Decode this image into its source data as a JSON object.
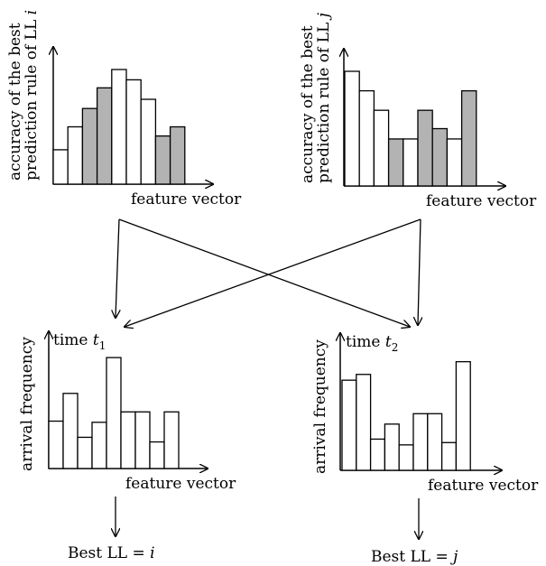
{
  "chart_data": [
    {
      "type": "bar",
      "ylabel_line1": "accuracy of the best",
      "ylabel_line2": "prediction rule of LL ",
      "ylabel_var": "i",
      "xlabel": "feature vector",
      "values": [
        0.3,
        0.5,
        0.66,
        0.84,
        1.0,
        0.91,
        0.74,
        0.42,
        0.5
      ],
      "shaded": [
        false,
        false,
        true,
        true,
        false,
        false,
        false,
        true,
        true
      ]
    },
    {
      "type": "bar",
      "ylabel_line1": "accuracy of the best",
      "ylabel_line2": "prediction rule of LL ",
      "ylabel_var": "j",
      "xlabel": "feature vector",
      "values": [
        1.0,
        0.83,
        0.66,
        0.41,
        0.41,
        0.66,
        0.5,
        0.41,
        0.83
      ],
      "shaded": [
        false,
        false,
        false,
        true,
        false,
        true,
        true,
        false,
        true
      ]
    },
    {
      "type": "bar",
      "time_label": "time ",
      "time_var": "t",
      "time_sub": "1",
      "ylabel": "arrival frequency",
      "xlabel": "feature vector",
      "values": [
        0.41,
        0.65,
        0.27,
        0.4,
        0.96,
        0.49,
        0.49,
        0.23,
        0.49
      ],
      "shaded": [
        false,
        false,
        false,
        false,
        false,
        false,
        false,
        false,
        false
      ]
    },
    {
      "type": "bar",
      "time_label": "time ",
      "time_var": "t",
      "time_sub": "2",
      "ylabel": "arrival frequency",
      "xlabel": "feature vector",
      "values": [
        0.78,
        0.83,
        0.27,
        0.4,
        0.22,
        0.49,
        0.49,
        0.24,
        0.94
      ],
      "shaded": [
        false,
        false,
        false,
        false,
        false,
        false,
        false,
        false,
        false
      ]
    }
  ],
  "results": [
    {
      "text": "Best LL = ",
      "var": "i"
    },
    {
      "text": "Best LL = ",
      "var": "j"
    }
  ],
  "colors": {
    "shaded": "#b3b3b3",
    "unshaded": "#ffffff",
    "stroke": "#000000"
  }
}
